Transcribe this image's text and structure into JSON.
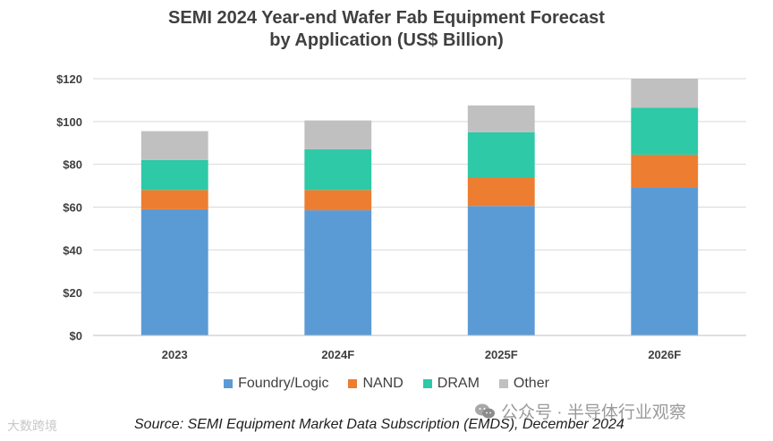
{
  "chart_data": {
    "type": "bar",
    "stacked": true,
    "title_lines": [
      "SEMI 2024 Year-end Wafer Fab Equipment Forecast",
      "by Application (US$ Billion)"
    ],
    "categories": [
      "2023",
      "2024F",
      "2025F",
      "2026F"
    ],
    "series": [
      {
        "name": "Foundry/Logic",
        "color": "#5b9bd5",
        "values": [
          59,
          58.5,
          60.5,
          69
        ]
      },
      {
        "name": "NAND",
        "color": "#ed7d31",
        "values": [
          9,
          9.5,
          13.5,
          15.5
        ]
      },
      {
        "name": "DRAM",
        "color": "#2ec9a7",
        "values": [
          14,
          19,
          21,
          22
        ]
      },
      {
        "name": "Other",
        "color": "#c0c0c0",
        "values": [
          13.5,
          13.5,
          12.5,
          13.5
        ]
      }
    ],
    "y_ticks": [
      0,
      20,
      40,
      60,
      80,
      100,
      120
    ],
    "y_tick_labels": [
      "$0",
      "$20",
      "$40",
      "$60",
      "$80",
      "$100",
      "$120"
    ],
    "ylim": [
      0,
      120
    ],
    "grid": true,
    "legend_position": "bottom",
    "xlabel": "",
    "ylabel": ""
  },
  "source": "Source: SEMI Equipment Market Data Subscription (EMDS), December 2024",
  "watermark_left": "大数跨境",
  "watermark_right": "公众号 · 半导体行业观察"
}
